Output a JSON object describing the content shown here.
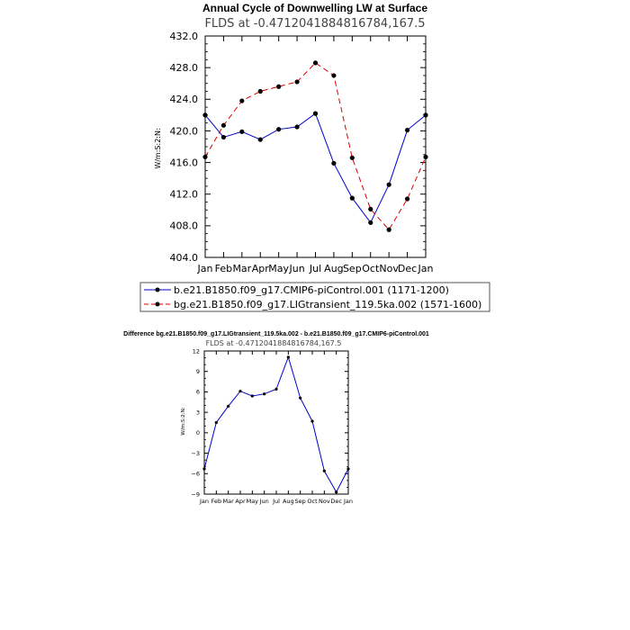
{
  "chart_data": [
    {
      "type": "line",
      "title": "Annual Cycle of Downwelling LW at Surface",
      "subtitle": "FLDS at -0.4712041884816784,167.5",
      "ylabel": "W/m:S:2:N:",
      "xlabel": "",
      "categories": [
        "Jan",
        "Feb",
        "Mar",
        "Apr",
        "May",
        "Jun",
        "Jul",
        "Aug",
        "Sep",
        "Oct",
        "Nov",
        "Dec",
        "Jan"
      ],
      "ylim": [
        404.0,
        432.0
      ],
      "yticks": [
        "404.0",
        "408.0",
        "412.0",
        "416.0",
        "420.0",
        "424.0",
        "428.0",
        "432.0"
      ],
      "legend_position": "bottom",
      "series": [
        {
          "name": "b.e21.B1850.f09_g17.CMIP6-piControl.001 (1171-1200)",
          "color": "#0000cc",
          "style": "solid",
          "values": [
            422.0,
            419.2,
            419.9,
            418.9,
            420.2,
            420.5,
            422.2,
            415.9,
            411.5,
            408.4,
            413.2,
            420.1,
            422.0
          ]
        },
        {
          "name": "bg.e21.B1850.f09_g17.LIGtransient_119.5ka.002 (1571-1600)",
          "color": "#dd0000",
          "style": "dashed",
          "values": [
            416.7,
            420.7,
            423.8,
            425.0,
            425.6,
            426.2,
            428.6,
            427.0,
            416.6,
            410.1,
            407.5,
            411.4,
            416.7
          ]
        }
      ]
    },
    {
      "type": "line",
      "title": "Difference bg.e21.B1850.f09_g17.LIGtransient_119.5ka.002 - b.e21.B1850.f09_g17.CMIP6-piControl.001",
      "subtitle": "FLDS at -0.4712041884816784,167.5",
      "ylabel": "W/m:S:2:N:",
      "xlabel": "",
      "categories": [
        "Jan",
        "Feb",
        "Mar",
        "Apr",
        "May",
        "Jun",
        "Jul",
        "Aug",
        "Sep",
        "Oct",
        "Nov",
        "Dec",
        "Jan"
      ],
      "ylim": [
        -9,
        12
      ],
      "yticks": [
        "−9",
        "−6",
        "−3",
        "0",
        "3",
        "6",
        "9",
        "12"
      ],
      "series": [
        {
          "name": "difference",
          "color": "#0000cc",
          "style": "solid",
          "values": [
            -5.3,
            1.5,
            3.9,
            6.1,
            5.4,
            5.7,
            6.4,
            11.1,
            5.1,
            1.7,
            -5.6,
            -8.7,
            -5.3
          ]
        }
      ]
    }
  ]
}
